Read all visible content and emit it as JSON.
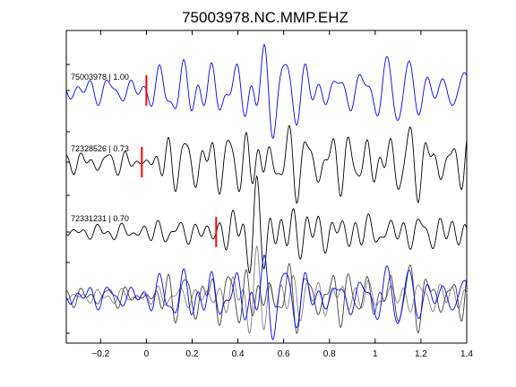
{
  "chart_data": {
    "type": "line",
    "title": "75003978.NC.MMP.EHZ",
    "xlabel": "",
    "ylabel": "",
    "xlim": [
      -0.35,
      1.4
    ],
    "xticks": [
      -0.2,
      0,
      0.2,
      0.4,
      0.6,
      0.8,
      1,
      1.2,
      1.4
    ],
    "xtick_labels": [
      "−0.2",
      "0",
      "0.2",
      "0.4",
      "0.6",
      "0.8",
      "1",
      "1.2",
      "1.4"
    ],
    "grid": false,
    "legend": "none",
    "traces": [
      {
        "id": "75003978",
        "label": "75003978 | 1.00",
        "correlation": 1.0,
        "pick_time": 0.0,
        "color": "#0000ff",
        "seed": 11
      },
      {
        "id": "72328526",
        "label": "72328526 | 0.73",
        "correlation": 0.73,
        "pick_time": -0.02,
        "color": "#000000",
        "seed": 23
      },
      {
        "id": "72331231",
        "label": "72331231 | 0.70",
        "correlation": 0.7,
        "pick_time": 0.305,
        "color": "#000000",
        "seed": 37
      }
    ],
    "overlay_colors": [
      "#808080",
      "#404040",
      "#0000ff"
    ],
    "pick_color": "#ff0000"
  }
}
